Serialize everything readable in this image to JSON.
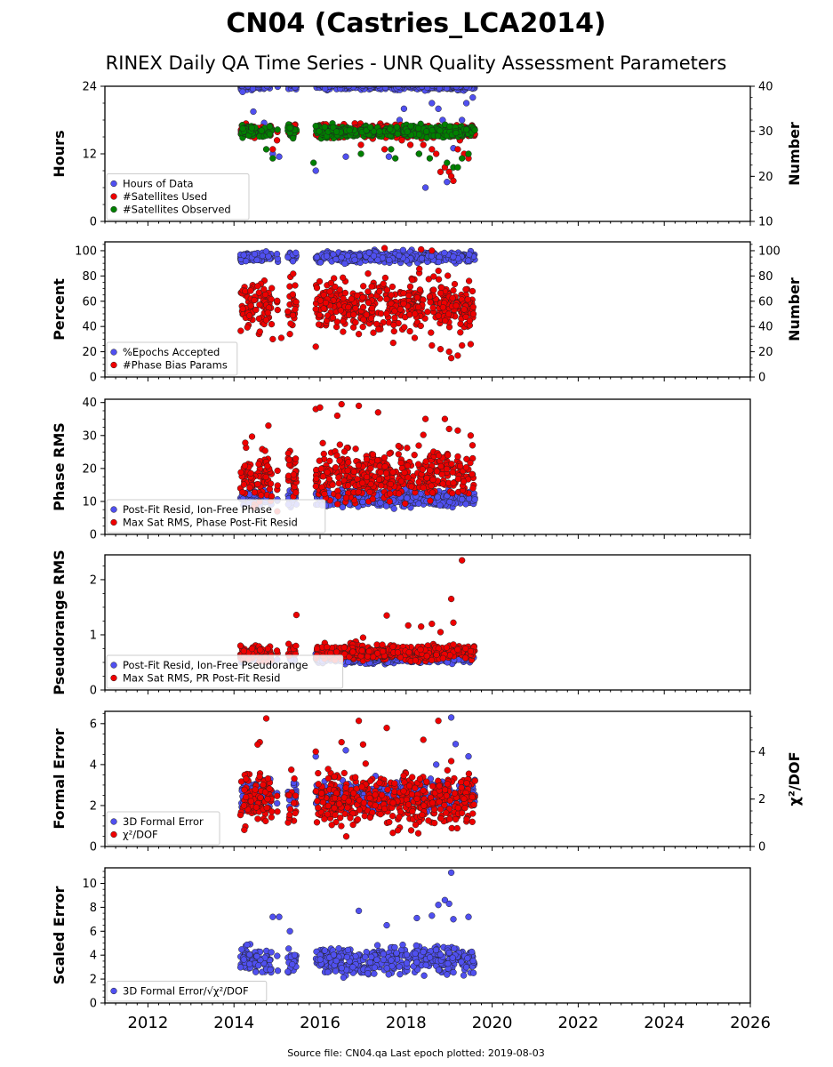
{
  "title": "CN04 (Castries_LCA2014)",
  "subtitle": "RINEX Daily QA Time Series - UNR Quality Assessment Parameters",
  "footer": "Source file: CN04.qa Last epoch plotted: 2019-08-03",
  "colors": {
    "blue": "#5050f0",
    "red": "#ee0000",
    "green": "#008000"
  },
  "chart_data": {
    "type": "scatter",
    "xlim": [
      2011.0,
      2026.0
    ],
    "x_ticks": [
      2012,
      2014,
      2016,
      2018,
      2020,
      2022,
      2024,
      2026
    ],
    "data_spans": [
      [
        2014.15,
        2014.88
      ],
      [
        2015.0,
        2015.02
      ],
      [
        2015.25,
        2015.45
      ],
      [
        2015.9,
        2019.6
      ]
    ],
    "panels": [
      {
        "id": "hours",
        "ylabel": "Hours",
        "ylim": [
          0,
          24
        ],
        "yticks": [
          0,
          12,
          24
        ],
        "ylabel_right": "Number",
        "ylim_right": [
          10,
          40
        ],
        "yticks_right": [
          10,
          20,
          30,
          40
        ],
        "legend": [
          "Hours of Data",
          "#Satellites Used",
          "#Satellites Observed"
        ],
        "series": [
          {
            "name": "Hours of Data",
            "color": "blue",
            "axis": "left",
            "typical": 24,
            "spread": 0.3,
            "outliers": [
              [
                2014.2,
                23
              ],
              [
                2014.45,
                19.5
              ],
              [
                2014.7,
                17.5
              ],
              [
                2014.9,
                12
              ],
              [
                2015.05,
                11.5
              ],
              [
                2015.9,
                9
              ],
              [
                2016.6,
                11.5
              ],
              [
                2017.6,
                11.5
              ],
              [
                2017.85,
                18
              ],
              [
                2017.95,
                20
              ],
              [
                2018.3,
                12
              ],
              [
                2018.45,
                6
              ],
              [
                2018.6,
                21
              ],
              [
                2018.75,
                20
              ],
              [
                2018.85,
                18
              ],
              [
                2018.95,
                7
              ],
              [
                2019.1,
                13
              ],
              [
                2019.3,
                18
              ],
              [
                2019.4,
                21
              ],
              [
                2019.55,
                22
              ]
            ]
          },
          {
            "name": "#Satellites Used",
            "color": "red",
            "axis": "right",
            "typical": 30,
            "spread": 0.7,
            "outliers": [
              [
                2014.9,
                26
              ],
              [
                2015.0,
                28
              ],
              [
                2016.95,
                27
              ],
              [
                2017.5,
                26
              ],
              [
                2017.9,
                28
              ],
              [
                2018.1,
                27
              ],
              [
                2018.4,
                27
              ],
              [
                2018.6,
                26
              ],
              [
                2018.7,
                25
              ],
              [
                2018.8,
                21
              ],
              [
                2018.9,
                22
              ],
              [
                2019.0,
                21
              ],
              [
                2019.05,
                20
              ],
              [
                2019.1,
                19
              ],
              [
                2019.2,
                26
              ],
              [
                2019.25,
                28
              ],
              [
                2019.35,
                25
              ],
              [
                2019.45,
                24
              ]
            ]
          },
          {
            "name": "#Satellites Observed",
            "color": "green",
            "axis": "right",
            "typical": 30,
            "spread": 0.6,
            "outliers": [
              [
                2014.75,
                26
              ],
              [
                2014.9,
                24
              ],
              [
                2015.85,
                23
              ],
              [
                2016.95,
                25
              ],
              [
                2017.65,
                26
              ],
              [
                2017.75,
                24
              ],
              [
                2018.3,
                25
              ],
              [
                2018.55,
                24
              ],
              [
                2018.95,
                23
              ],
              [
                2019.1,
                22
              ],
              [
                2019.2,
                22
              ],
              [
                2019.3,
                24
              ],
              [
                2019.45,
                25
              ]
            ]
          }
        ]
      },
      {
        "id": "percent",
        "ylabel": "Percent",
        "ylim": [
          0,
          107
        ],
        "yticks": [
          0,
          20,
          40,
          60,
          80,
          100
        ],
        "ylabel_right": "Number",
        "ylim_right": [
          0,
          107
        ],
        "yticks_right": [
          0,
          20,
          40,
          60,
          80,
          100
        ],
        "legend": [
          "%Epochs Accepted",
          "#Phase Bias Params"
        ],
        "series": [
          {
            "name": "%Epochs Accepted",
            "color": "blue",
            "axis": "left",
            "typical": 95,
            "spread": 2,
            "outliers": []
          },
          {
            "name": "#Phase Bias Params",
            "color": "red",
            "axis": "right",
            "typical": 57,
            "spread": 10,
            "outliers": [
              [
                2014.9,
                30
              ],
              [
                2015.1,
                31
              ],
              [
                2015.3,
                34
              ],
              [
                2015.9,
                24
              ],
              [
                2016.9,
                34
              ],
              [
                2017.7,
                27
              ],
              [
                2018.2,
                31
              ],
              [
                2018.6,
                25
              ],
              [
                2018.8,
                22
              ],
              [
                2019.0,
                20
              ],
              [
                2019.05,
                15
              ],
              [
                2019.2,
                17
              ],
              [
                2019.3,
                25
              ],
              [
                2019.5,
                26
              ],
              [
                2017.5,
                102
              ],
              [
                2018.35,
                101
              ],
              [
                2018.6,
                100
              ]
            ]
          }
        ]
      },
      {
        "id": "phase",
        "ylabel": "Phase RMS",
        "ylim": [
          0,
          41
        ],
        "yticks": [
          0,
          10,
          20,
          30,
          40
        ],
        "legend": [
          "Post-Fit Resid, Ion-Free Phase",
          "Max Sat RMS, Phase Post-Fit Resid"
        ],
        "series": [
          {
            "name": "Post-Fit Resid, Ion-Free Phase",
            "color": "blue",
            "axis": "left",
            "typical": 11,
            "spread": 1.2,
            "outliers": []
          },
          {
            "name": "Max Sat RMS, Phase Post-Fit Resid",
            "color": "red",
            "axis": "left",
            "typical": 18,
            "spread": 4,
            "outliers": [
              [
                2014.8,
                33
              ],
              [
                2015.9,
                38
              ],
              [
                2016.0,
                38.5
              ],
              [
                2016.5,
                39.5
              ],
              [
                2016.9,
                39
              ],
              [
                2017.35,
                37
              ],
              [
                2016.4,
                36
              ],
              [
                2018.45,
                35
              ],
              [
                2018.9,
                35
              ],
              [
                2019.0,
                32
              ],
              [
                2019.2,
                31.5
              ],
              [
                2019.5,
                30
              ]
            ]
          }
        ]
      },
      {
        "id": "pseudorange",
        "ylabel": "Pseudorange RMS",
        "ylim": [
          0,
          2.45
        ],
        "yticks": [
          0,
          1,
          2
        ],
        "legend": [
          "Post-Fit Resid, Ion-Free Pseudorange",
          "Max Sat RMS, PR Post-Fit Resid"
        ],
        "series": [
          {
            "name": "Post-Fit Resid, Ion-Free Pseudorange",
            "color": "blue",
            "axis": "left",
            "typical": 0.57,
            "spread": 0.04,
            "outliers": []
          },
          {
            "name": "Max Sat RMS, PR Post-Fit Resid",
            "color": "red",
            "axis": "left",
            "typical": 0.68,
            "spread": 0.07,
            "outliers": [
              [
                2015.45,
                1.36
              ],
              [
                2017.55,
                1.35
              ],
              [
                2018.05,
                1.17
              ],
              [
                2018.35,
                1.15
              ],
              [
                2018.6,
                1.2
              ],
              [
                2019.1,
                1.22
              ],
              [
                2019.05,
                1.65
              ],
              [
                2019.3,
                2.35
              ],
              [
                2017.0,
                0.95
              ],
              [
                2018.8,
                1.05
              ]
            ]
          }
        ]
      },
      {
        "id": "formal",
        "ylabel": "Formal Error",
        "ylim": [
          0,
          6.6
        ],
        "yticks": [
          0,
          2,
          4,
          6
        ],
        "ylabel_right": "χ²/DOF",
        "ylim_right": [
          0,
          5.7
        ],
        "yticks_right": [
          0,
          2,
          4
        ],
        "legend": [
          "3D Formal Error",
          "χ²/DOF"
        ],
        "series": [
          {
            "name": "3D Formal Error",
            "color": "blue",
            "axis": "left",
            "typical": 2.5,
            "spread": 0.35,
            "outliers": [
              [
                2015.9,
                4.4
              ],
              [
                2016.6,
                4.7
              ],
              [
                2019.05,
                6.3
              ],
              [
                2019.15,
                5.0
              ],
              [
                2019.45,
                4.4
              ],
              [
                2018.7,
                4.0
              ]
            ]
          },
          {
            "name": "χ²/DOF",
            "color": "red",
            "axis": "right",
            "typical": 2.0,
            "spread": 0.55,
            "outliers": [
              [
                2014.75,
                5.4
              ],
              [
                2014.6,
                4.4
              ],
              [
                2014.55,
                4.3
              ],
              [
                2016.9,
                5.3
              ],
              [
                2017.55,
                5.0
              ],
              [
                2018.4,
                4.5
              ],
              [
                2018.75,
                5.3
              ],
              [
                2016.5,
                4.4
              ],
              [
                2017.0,
                4.3
              ],
              [
                2015.9,
                4.0
              ],
              [
                2019.05,
                3.6
              ]
            ]
          }
        ]
      },
      {
        "id": "scaled",
        "ylabel": "Scaled Error",
        "ylim": [
          0,
          11.3
        ],
        "yticks": [
          0,
          2,
          4,
          6,
          8,
          10
        ],
        "legend": [
          "3D Formal Error/√χ²/DOF"
        ],
        "series": [
          {
            "name": "3D Formal Error/√χ²/DOF",
            "color": "blue",
            "axis": "left",
            "typical": 3.6,
            "spread": 0.6,
            "outliers": [
              [
                2014.9,
                7.2
              ],
              [
                2015.05,
                7.2
              ],
              [
                2015.3,
                6.0
              ],
              [
                2016.9,
                7.7
              ],
              [
                2017.55,
                6.5
              ],
              [
                2018.25,
                7.1
              ],
              [
                2018.75,
                8.2
              ],
              [
                2018.9,
                8.6
              ],
              [
                2019.0,
                8.3
              ],
              [
                2019.05,
                10.9
              ],
              [
                2019.1,
                7.0
              ],
              [
                2019.45,
                7.2
              ],
              [
                2018.6,
                7.3
              ]
            ]
          }
        ]
      }
    ]
  }
}
